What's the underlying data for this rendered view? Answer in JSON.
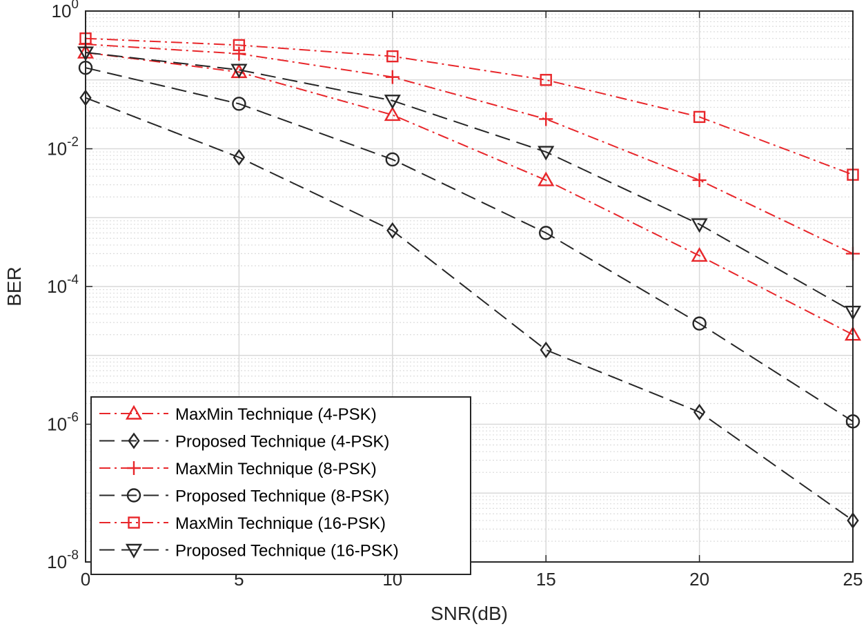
{
  "chart_data": {
    "type": "line",
    "title": "",
    "xlabel": "SNR(dB)",
    "ylabel": "BER",
    "yscale": "log",
    "xlim": [
      0,
      25
    ],
    "ylim": [
      1e-08,
      1
    ],
    "grid": true,
    "minor_grid": true,
    "legend_location": "bottom-left",
    "x": [
      0,
      5,
      10,
      15,
      20,
      25
    ],
    "xticks": [
      "0",
      "5",
      "10",
      "15",
      "20",
      "25"
    ],
    "yticks": [
      {
        "base": "10",
        "exp": "0"
      },
      {
        "base": "10",
        "exp": "-2"
      },
      {
        "base": "10",
        "exp": "-4"
      },
      {
        "base": "10",
        "exp": "-6"
      },
      {
        "base": "10",
        "exp": "-8"
      }
    ],
    "series": [
      {
        "name": "MaxMin Technique (4-PSK)",
        "color": "#e8262a",
        "dash": "dashdot",
        "marker": "triangle-up",
        "values": [
          0.25,
          0.13,
          0.031,
          0.0035,
          0.00028,
          2e-05
        ]
      },
      {
        "name": "Proposed Technique (4-PSK)",
        "color": "#262626",
        "dash": "dashed",
        "marker": "diamond",
        "values": [
          0.055,
          0.0075,
          0.00065,
          1.2e-05,
          1.5e-06,
          4e-08
        ]
      },
      {
        "name": "MaxMin Technique (8-PSK)",
        "color": "#e8262a",
        "dash": "dashdot",
        "marker": "plus",
        "values": [
          0.33,
          0.24,
          0.11,
          0.027,
          0.0035,
          0.0003
        ]
      },
      {
        "name": "Proposed Technique (8-PSK)",
        "color": "#262626",
        "dash": "dashed",
        "marker": "circle",
        "values": [
          0.15,
          0.045,
          0.007,
          0.0006,
          2.9e-05,
          1.1e-06
        ]
      },
      {
        "name": "MaxMin Technique (16-PSK)",
        "color": "#e8262a",
        "dash": "dashdot",
        "marker": "square",
        "values": [
          0.4,
          0.32,
          0.22,
          0.1,
          0.029,
          0.0042
        ]
      },
      {
        "name": "Proposed Technique (16-PSK)",
        "color": "#262626",
        "dash": "dashed",
        "marker": "triangle-down",
        "values": [
          0.25,
          0.14,
          0.05,
          0.009,
          0.0008,
          4.3e-05
        ]
      }
    ]
  }
}
